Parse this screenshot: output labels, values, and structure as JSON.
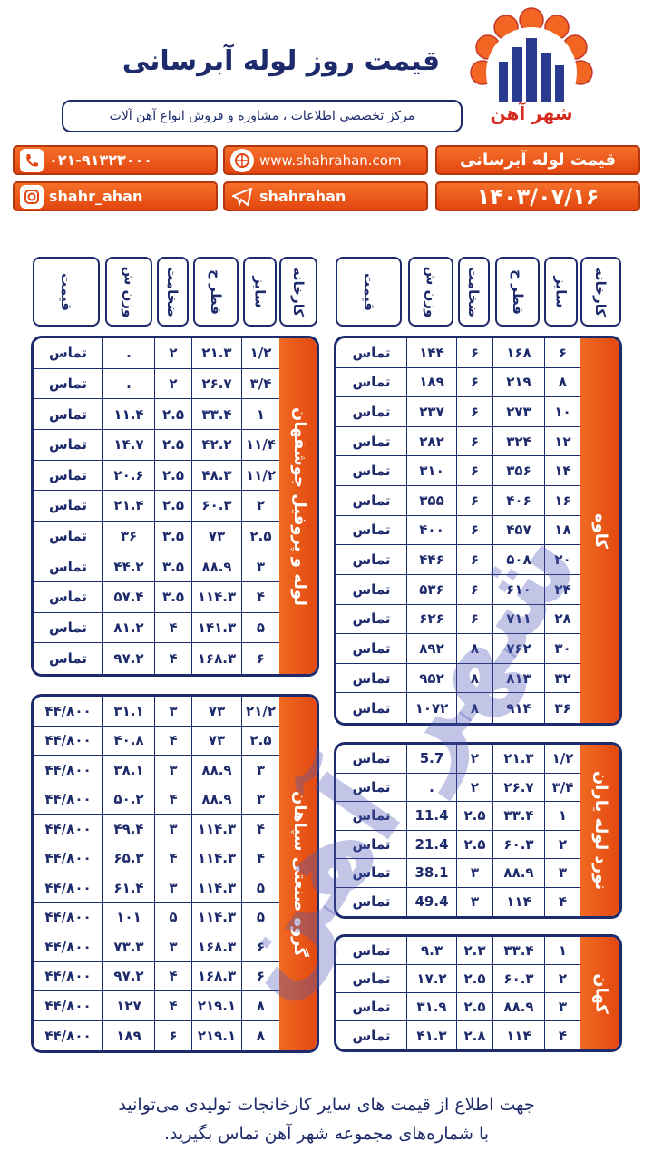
{
  "header": {
    "title": "قیمت روز لوله آبرسانی",
    "subtitle": "مرکز تخصصی اطلاعات ، مشاوره و فروش انواع آهن آلات",
    "logo_text": "شهر آهن"
  },
  "buttons": {
    "phone": "۰۲۱-۹۱۳۲۳۰۰۰",
    "website": "www.shahrahan.com",
    "topic": "قیمت لوله آبرسانی",
    "instagram": "shahr_ahan",
    "telegram": "shahrahan",
    "date": "۱۴۰۳/۰۷/۱۶"
  },
  "column_headers": [
    "کارخانه",
    "سایز",
    "قطر خ",
    "ضخامت",
    "وزن ش",
    "قیمت"
  ],
  "tables": [
    {
      "name": "کاوه",
      "rows": [
        [
          "۶",
          "۱۶۸",
          "۶",
          "۱۴۴",
          "تماس"
        ],
        [
          "۸",
          "۲۱۹",
          "۶",
          "۱۸۹",
          "تماس"
        ],
        [
          "۱۰",
          "۲۷۳",
          "۶",
          "۲۳۷",
          "تماس"
        ],
        [
          "۱۲",
          "۳۲۴",
          "۶",
          "۲۸۲",
          "تماس"
        ],
        [
          "۱۴",
          "۳۵۶",
          "۶",
          "۳۱۰",
          "تماس"
        ],
        [
          "۱۶",
          "۴۰۶",
          "۶",
          "۳۵۵",
          "تماس"
        ],
        [
          "۱۸",
          "۴۵۷",
          "۶",
          "۴۰۰",
          "تماس"
        ],
        [
          "۲۰",
          "۵۰۸",
          "۶",
          "۴۴۶",
          "تماس"
        ],
        [
          "۲۴",
          "۶۱۰",
          "۶",
          "۵۳۶",
          "تماس"
        ],
        [
          "۲۸",
          "۷۱۱",
          "۶",
          "۶۲۶",
          "تماس"
        ],
        [
          "۳۰",
          "۷۶۲",
          "۸",
          "۸۹۲",
          "تماس"
        ],
        [
          "۳۲",
          "۸۱۳",
          "۸",
          "۹۵۲",
          "تماس"
        ],
        [
          "۳۶",
          "۹۱۴",
          "۸",
          "۱۰۷۲",
          "تماس"
        ]
      ]
    },
    {
      "name": "نورد لوله یاران",
      "rows": [
        [
          "۱/۲",
          "۲۱.۳",
          "۲",
          "5.7",
          "تماس"
        ],
        [
          "۳/۴",
          "۲۶.۷",
          "۲",
          ".",
          "تماس"
        ],
        [
          "۱",
          "۳۳.۴",
          "۲.۵",
          "11.4",
          "تماس"
        ],
        [
          "۲",
          "۶۰.۳",
          "۲.۵",
          "21.4",
          "تماس"
        ],
        [
          "۳",
          "۸۸.۹",
          "۳",
          "38.1",
          "تماس"
        ],
        [
          "۴",
          "۱۱۴",
          "۳",
          "49.4",
          "تماس"
        ]
      ]
    },
    {
      "name": "کهان",
      "rows": [
        [
          "۱",
          "۳۳.۴",
          "۲.۳",
          "۹.۳",
          "تماس"
        ],
        [
          "۲",
          "۶۰.۳",
          "۲.۵",
          "۱۷.۲",
          "تماس"
        ],
        [
          "۳",
          "۸۸.۹",
          "۲.۵",
          "۳۱.۹",
          "تماس"
        ],
        [
          "۴",
          "۱۱۴",
          "۲.۸",
          "۴۱.۳",
          "تماس"
        ]
      ]
    },
    {
      "name": "لوله و پروفیل جوشفهان",
      "rows": [
        [
          "۱/۲",
          "۲۱.۳",
          "۲",
          ".",
          "تماس"
        ],
        [
          "۳/۴",
          "۲۶.۷",
          "۲",
          ".",
          "تماس"
        ],
        [
          "۱",
          "۳۳.۴",
          "۲.۵",
          "۱۱.۴",
          "تماس"
        ],
        [
          "۱۱/۴",
          "۴۲.۲",
          "۲.۵",
          "۱۴.۷",
          "تماس"
        ],
        [
          "۱۱/۲",
          "۴۸.۳",
          "۲.۵",
          "۲۰.۶",
          "تماس"
        ],
        [
          "۲",
          "۶۰.۳",
          "۲.۵",
          "۲۱.۴",
          "تماس"
        ],
        [
          "۲.۵",
          "۷۳",
          "۳.۵",
          "۳۶",
          "تماس"
        ],
        [
          "۳",
          "۸۸.۹",
          "۳.۵",
          "۴۴.۲",
          "تماس"
        ],
        [
          "۴",
          "۱۱۴.۳",
          "۳.۵",
          "۵۷.۴",
          "تماس"
        ],
        [
          "۵",
          "۱۴۱.۳",
          "۴",
          "۸۱.۲",
          "تماس"
        ],
        [
          "۶",
          "۱۶۸.۳",
          "۴",
          "۹۷.۲",
          "تماس"
        ]
      ]
    },
    {
      "name": "گروه صنعتی سپاهان",
      "rows": [
        [
          "۲۱/۲",
          "۷۳",
          "۳",
          "۳۱.۱",
          "۴۴/۸۰۰"
        ],
        [
          "۲.۵",
          "۷۳",
          "۴",
          "۴۰.۸",
          "۴۴/۸۰۰"
        ],
        [
          "۳",
          "۸۸.۹",
          "۳",
          "۳۸.۱",
          "۴۴/۸۰۰"
        ],
        [
          "۳",
          "۸۸.۹",
          "۴",
          "۵۰.۲",
          "۴۴/۸۰۰"
        ],
        [
          "۴",
          "۱۱۴.۳",
          "۳",
          "۴۹.۴",
          "۴۴/۸۰۰"
        ],
        [
          "۴",
          "۱۱۴.۳",
          "۴",
          "۶۵.۳",
          "۴۴/۸۰۰"
        ],
        [
          "۵",
          "۱۱۴.۳",
          "۳",
          "۶۱.۴",
          "۴۴/۸۰۰"
        ],
        [
          "۵",
          "۱۱۴.۳",
          "۵",
          "۱۰۱",
          "۴۴/۸۰۰"
        ],
        [
          "۶",
          "۱۶۸.۳",
          "۳",
          "۷۳.۳",
          "۴۴/۸۰۰"
        ],
        [
          "۶",
          "۱۶۸.۳",
          "۴",
          "۹۷.۲",
          "۴۴/۸۰۰"
        ],
        [
          "۸",
          "۲۱۹.۱",
          "۴",
          "۱۲۷",
          "۴۴/۸۰۰"
        ],
        [
          "۸",
          "۲۱۹.۱",
          "۶",
          "۱۸۹",
          "۴۴/۸۰۰"
        ]
      ]
    }
  ],
  "watermark": "شهر آهن",
  "footer": {
    "line1": "جهت اطلاع از قیمت های سایر کارخانجات تولیدی می‌توانید",
    "line2": "با شماره‌های مجموعه شهر آهن تماس بگیرید."
  }
}
